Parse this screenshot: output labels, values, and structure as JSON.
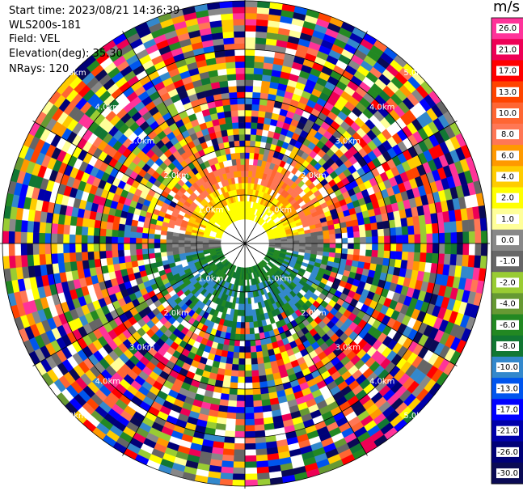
{
  "header": {
    "start_time": "Start time: 2023/08/21 14:36:39",
    "station": "WLS200s-181",
    "field": "Field: VEL",
    "elevation": "Elevation(deg): 35.30",
    "nrays": "NRays: 120"
  },
  "colorbar": {
    "unit": "m/s",
    "bins": [
      {
        "label": "26.0",
        "color": "#ff3399"
      },
      {
        "label": "21.0",
        "color": "#ee0055"
      },
      {
        "label": "17.0",
        "color": "#ff0000"
      },
      {
        "label": "13.0",
        "color": "#ff4400"
      },
      {
        "label": "10.0",
        "color": "#ff6633"
      },
      {
        "label": "8.0",
        "color": "#ff7755"
      },
      {
        "label": "6.0",
        "color": "#ff9900"
      },
      {
        "label": "4.0",
        "color": "#ffcc00"
      },
      {
        "label": "2.0",
        "color": "#ffff00"
      },
      {
        "label": "1.0",
        "color": "#ffff99"
      },
      {
        "label": "0.0",
        "color": "#888888"
      },
      {
        "label": "-1.0",
        "color": "#666666"
      },
      {
        "label": "-2.0",
        "color": "#99cc33"
      },
      {
        "label": "-4.0",
        "color": "#669933"
      },
      {
        "label": "-6.0",
        "color": "#228822"
      },
      {
        "label": "-8.0",
        "color": "#117733"
      },
      {
        "label": "-10.0",
        "color": "#3388cc"
      },
      {
        "label": "-13.0",
        "color": "#0055ee"
      },
      {
        "label": "-17.0",
        "color": "#0000ff"
      },
      {
        "label": "-21.0",
        "color": "#0000aa"
      },
      {
        "label": "-26.0",
        "color": "#000077"
      },
      {
        "label": "-30.0",
        "color": "#0a0a55"
      }
    ]
  },
  "range_rings": {
    "labels": [
      "1.0km",
      "2.0km",
      "3.0km",
      "4.0km",
      "5.0km"
    ]
  },
  "chart_data": {
    "type": "heatmap",
    "projection": "polar PPI",
    "field": "VEL",
    "unit": "m/s",
    "elevation_deg": 35.3,
    "n_rays": 120,
    "range_rings_km": [
      1,
      2,
      3,
      4,
      5
    ],
    "colorbar_ticks": [
      26.0,
      21.0,
      17.0,
      13.0,
      10.0,
      8.0,
      6.0,
      4.0,
      2.0,
      1.0,
      0.0,
      -1.0,
      -2.0,
      -4.0,
      -6.0,
      -8.0,
      -10.0,
      -13.0,
      -17.0,
      -21.0,
      -26.0,
      -30.0
    ],
    "pattern": "near-field (<1.5km): positive velocities (yellow/orange) on north half, negative velocities (green/blue) on south half; beyond ~2km noisy multi-colored returns"
  }
}
